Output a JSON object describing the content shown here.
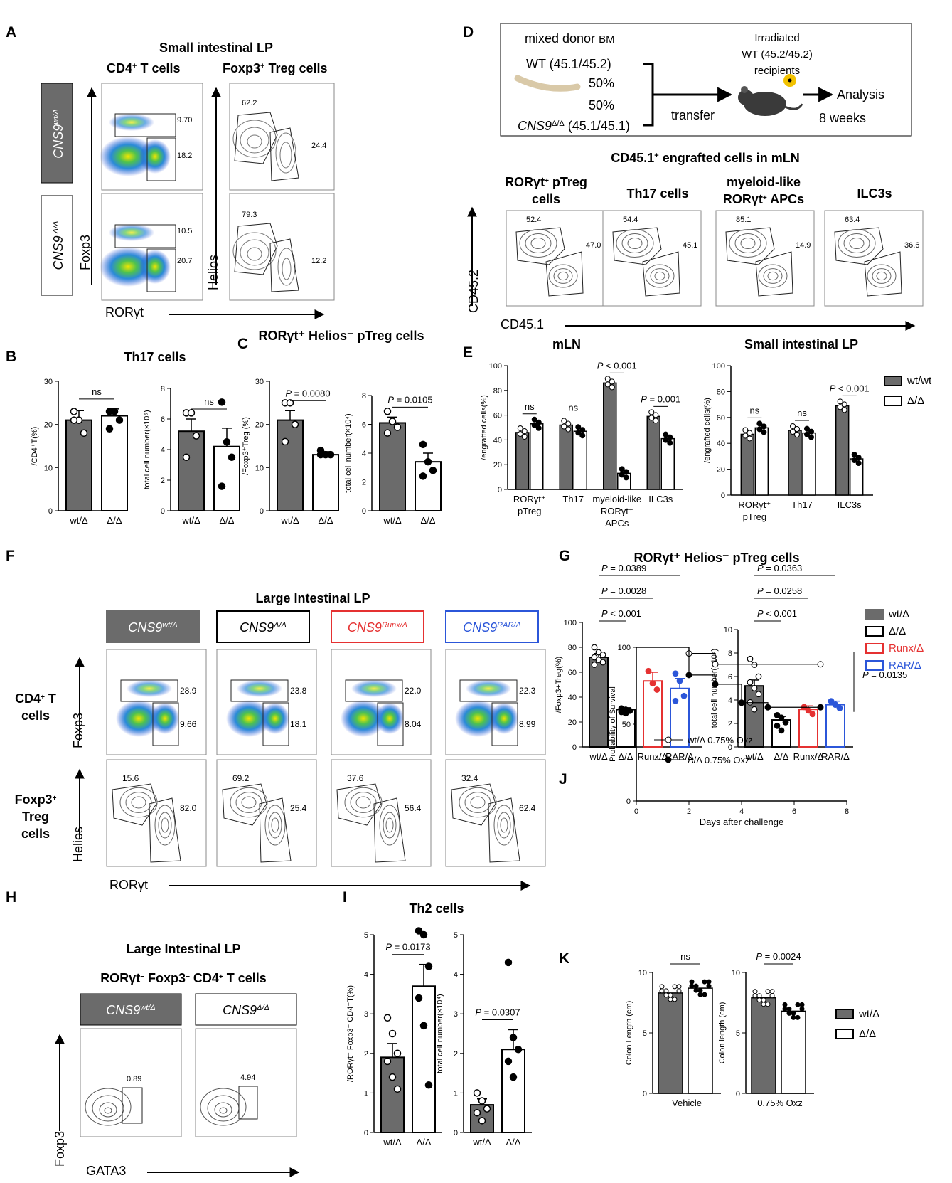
{
  "colors": {
    "wt": "#6b6b6b",
    "mut": "#ffffff",
    "runx": "#e53131",
    "rar": "#2b56d9",
    "boxGray": "#6b6b6b"
  },
  "panels": {
    "A": "A",
    "B": "B",
    "C": "C",
    "D": "D",
    "E": "E",
    "F": "F",
    "G": "G",
    "H": "H",
    "I": "I",
    "J": "J",
    "K": "K"
  },
  "A": {
    "title": "Small intestinal LP",
    "col1": "CD4",
    "col1sup": "+",
    "col1b": " T cells",
    "col2": "Foxp3",
    "col2sup": "+",
    "col2b": " Treg cells",
    "row1_label": "CNS9",
    "row1_sup": "wt/Δ",
    "row2_label": "CNS9",
    "row2_sup": " Δ/Δ",
    "y1": "Foxp3",
    "x1": "RORγt",
    "y2": "Helios",
    "freqs": {
      "r1g1": "9.70",
      "r1g2": "18.2",
      "r2g1": "10.5",
      "r2g2": "20.7",
      "r1h1": "62.2",
      "r1h2": "24.4",
      "r2h1": "79.3",
      "r2h2": "12.2"
    }
  },
  "D": {
    "mixed": "mixed donor",
    "bm": "BM",
    "wt": "WT (45.1/45.2)",
    "p1": "50%",
    "p2": "50%",
    "cns": "CNS9",
    "cnssup": "Δ/Δ",
    "cnsrest": " (45.1/45.1)",
    "transfer": "transfer",
    "irr1": "Irradiated",
    "irr2": "WT (45.2/45.2)",
    "irr3": "recipients",
    "analysis": "Analysis",
    "weeks": "8 weeks",
    "sub_title": "CD45.1",
    "sub_sup": "+",
    "sub_rest": " engrafted cells in mLN",
    "pops": [
      {
        "a": "RORγt",
        "asup": "+",
        "ab": " pTreg",
        "b": "cells",
        "f1": "52.4",
        "f2": "47.0"
      },
      {
        "a": "Th17 cells",
        "asup": "",
        "ab": "",
        "b": "",
        "f1": "54.4",
        "f2": "45.1"
      },
      {
        "a": "myeloid-like",
        "asup": "",
        "ab": "",
        "b": "RORγt",
        "bsup": "+",
        "bb": " APCs",
        "f1": "85.1",
        "f2": "14.9"
      },
      {
        "a": "ILC3s",
        "asup": "",
        "ab": "",
        "b": "",
        "f1": "63.4",
        "f2": "36.6"
      }
    ],
    "y": "CD45.2",
    "x": "CD45.1"
  },
  "F": {
    "title": "Large Intestinal LP",
    "genos": [
      {
        "base": "CNS9",
        "sup": "wt/Δ"
      },
      {
        "base": "CNS9",
        "sup": "Δ/Δ"
      },
      {
        "base": "CNS9",
        "sup": "Runx/Δ"
      },
      {
        "base": "CNS9",
        "sup": "RAR/Δ"
      }
    ],
    "row1a": "CD4",
    "row1sup": "+",
    "row1b": " T",
    "row1c": "cells",
    "row2a": "Foxp3",
    "row2sup": "+",
    "row2b": "Treg",
    "row2c": "cells",
    "y1": "Foxp3",
    "y2": "Helios",
    "x": "RORγt",
    "top": [
      [
        "28.9",
        "9.66"
      ],
      [
        "23.8",
        "18.1"
      ],
      [
        "22.0",
        "8.04"
      ],
      [
        "22.3",
        "8.99"
      ]
    ],
    "bot": [
      [
        "15.6",
        "82.0"
      ],
      [
        "69.2",
        "25.4"
      ],
      [
        "37.6",
        "56.4"
      ],
      [
        "32.4",
        "62.4"
      ]
    ]
  },
  "H": {
    "title": "Large Intestinal LP",
    "sub_a": "RORγt",
    "sub_asup": "−",
    "sub_b": " Foxp3",
    "sub_bsup": "−",
    "sub_c": " CD4",
    "sub_csup": "+",
    "sub_d": " T cells",
    "g1": "CNS9",
    "g1sup": "wt/Δ",
    "g2": "CNS9",
    "g2sup": "Δ/Δ",
    "f1": "0.89",
    "f2": "4.94",
    "y": "Foxp3",
    "x": "GATA3"
  },
  "legends": {
    "E": [
      {
        "label": "wt/wt",
        "fill": "#6b6b6b"
      },
      {
        "label": "Δ/Δ",
        "fill": "#ffffff"
      }
    ],
    "G": [
      {
        "label": "wt/Δ",
        "color": "#6b6b6b",
        "fill": "#6b6b6b"
      },
      {
        "label": "Δ/Δ",
        "color": "#000000",
        "fill": "#ffffff"
      },
      {
        "label": "Runx/Δ",
        "color": "#e53131",
        "fill": "#ffffff"
      },
      {
        "label": "RAR/Δ",
        "color": "#2b56d9",
        "fill": "#ffffff"
      }
    ],
    "K": [
      {
        "label": "wt/Δ",
        "fill": "#6b6b6b"
      },
      {
        "label": "Δ/Δ",
        "fill": "#ffffff"
      }
    ]
  },
  "chart_data": [
    {
      "id": "B1",
      "type": "bar",
      "title": "Th17 cells",
      "categories": [
        "wt/Δ",
        "Δ/Δ"
      ],
      "values": [
        21,
        22
      ],
      "sem": [
        2.2,
        1.6
      ],
      "ylabel": "/CD4⁺T(%)",
      "ylim": [
        0,
        30
      ],
      "yticks": [
        0,
        10,
        20,
        30
      ],
      "annot": "ns",
      "points": [
        [
          23,
          21,
          18,
          21
        ],
        [
          23,
          23,
          21,
          19
        ]
      ]
    },
    {
      "id": "B2",
      "type": "bar",
      "categories": [
        "wt/Δ",
        "Δ/Δ"
      ],
      "values": [
        5.2,
        4.2
      ],
      "sem": [
        0.8,
        1.2
      ],
      "ylabel": "total cell number(×10⁵)",
      "ylim": [
        0,
        8
      ],
      "yticks": [
        0,
        2,
        4,
        6,
        8
      ],
      "annot": "ns",
      "points": [
        [
          6.4,
          6.4,
          4.9,
          3.5
        ],
        [
          7.1,
          4.5,
          3.5,
          1.6
        ]
      ]
    },
    {
      "id": "C1",
      "type": "bar",
      "title": "RORγt⁺ Helios⁻ pTreg cells",
      "categories": [
        "wt/Δ",
        "Δ/Δ"
      ],
      "values": [
        21,
        13
      ],
      "sem": [
        2.2,
        0.7
      ],
      "ylabel": "/Foxp3⁺Treg (%)",
      "ylim": [
        0,
        30
      ],
      "yticks": [
        0,
        10,
        20,
        30
      ],
      "annot": "P = 0.0080",
      "points": [
        [
          25,
          25,
          20,
          16
        ],
        [
          14,
          13,
          13,
          13
        ]
      ]
    },
    {
      "id": "C2",
      "type": "bar",
      "categories": [
        "wt/Δ",
        "Δ/Δ"
      ],
      "values": [
        6.1,
        3.4
      ],
      "sem": [
        0.4,
        0.6
      ],
      "ylabel": "total cell number(×10⁴)",
      "ylim": [
        0,
        8
      ],
      "yticks": [
        0,
        2,
        4,
        6,
        8
      ],
      "annot": "P = 0.0105",
      "points": [
        [
          6.9,
          6.2,
          5.8,
          5.4
        ],
        [
          4.6,
          3.4,
          2.8,
          2.4
        ]
      ]
    },
    {
      "id": "E1",
      "type": "bar",
      "title": "mLN",
      "categories": [
        "RORγt⁺ pTreg",
        "Th17",
        "myeloid-like RORγt⁺ APCs",
        "ILC3s"
      ],
      "ylabel": "/engrafted cells(%)",
      "ylim": [
        0,
        100
      ],
      "yticks": [
        0,
        20,
        40,
        60,
        80,
        100
      ],
      "series": [
        {
          "name": "wt/wt",
          "values": [
            46,
            52,
            86,
            59
          ]
        },
        {
          "name": "Δ/Δ",
          "values": [
            53,
            47,
            13,
            41
          ]
        }
      ],
      "annots": [
        "ns",
        "ns",
        "P < 0.001",
        "P = 0.001"
      ]
    },
    {
      "id": "E2",
      "type": "bar",
      "title": "Small intestinal LP",
      "categories": [
        "RORγt⁺ pTreg",
        "Th17",
        "ILC3s"
      ],
      "ylabel": "/engrafted cells(%)",
      "ylim": [
        0,
        100
      ],
      "yticks": [
        0,
        20,
        40,
        60,
        80,
        100
      ],
      "series": [
        {
          "name": "wt/wt",
          "values": [
            47,
            50,
            69
          ]
        },
        {
          "name": "Δ/Δ",
          "values": [
            52,
            48,
            28
          ]
        }
      ],
      "annots": [
        "ns",
        "ns",
        "P < 0.001"
      ]
    },
    {
      "id": "G1",
      "type": "bar",
      "title": "RORγt⁺ Helios⁻ pTreg cells",
      "categories": [
        "wt/Δ",
        "Δ/Δ",
        "Runx/Δ",
        "RAR/Δ"
      ],
      "values": [
        72,
        30,
        53,
        47
      ],
      "sem": [
        3,
        1.5,
        7,
        8
      ],
      "ylabel": "/Foxp3+Treg(%)",
      "ylim": [
        0,
        100
      ],
      "yticks": [
        0,
        20,
        40,
        60,
        80,
        100
      ],
      "annots": [
        "P < 0.001",
        "P = 0.0028",
        "P = 0.0389"
      ]
    },
    {
      "id": "G2",
      "type": "bar",
      "categories": [
        "wt/Δ",
        "Δ/Δ",
        "Runx/Δ",
        "RAR/Δ"
      ],
      "values": [
        5.2,
        2.3,
        3.2,
        3.6
      ],
      "sem": [
        0.5,
        0.3,
        0.3,
        0.3
      ],
      "ylabel": "total cell number(×10⁴)",
      "ylim": [
        0,
        10
      ],
      "yticks": [
        0,
        2,
        4,
        6,
        8,
        10
      ],
      "annots": [
        "P < 0.001",
        "P = 0.0258",
        "P = 0.0363"
      ]
    },
    {
      "id": "I1",
      "type": "bar",
      "title": "Th2 cells",
      "categories": [
        "wt/Δ",
        "Δ/Δ"
      ],
      "values": [
        1.9,
        3.7
      ],
      "sem": [
        0.35,
        0.55
      ],
      "ylabel": "/RORγt⁻ Foxp3⁻ CD4⁺T(%)",
      "ylim": [
        0,
        5
      ],
      "yticks": [
        0,
        1,
        2,
        3,
        4,
        5
      ],
      "annot": "P = 0.0173",
      "points": [
        [
          2.9,
          2.5,
          2.0,
          1.8,
          1.4,
          1.1
        ],
        [
          5.1,
          5.0,
          4.2,
          3.4,
          2.7,
          1.2
        ]
      ]
    },
    {
      "id": "I2",
      "type": "bar",
      "categories": [
        "wt/Δ",
        "Δ/Δ"
      ],
      "values": [
        0.7,
        2.1
      ],
      "sem": [
        0.15,
        0.5
      ],
      "ylabel": "total cell number(×10⁴)",
      "ylim": [
        0,
        5
      ],
      "yticks": [
        0,
        1,
        2,
        3,
        4,
        5
      ],
      "annot": "P = 0.0307",
      "points": [
        [
          1.0,
          0.8,
          0.6,
          0.5,
          0.3
        ],
        [
          4.3,
          2.4,
          2.1,
          1.8,
          1.4
        ]
      ]
    },
    {
      "id": "J",
      "type": "line",
      "xlabel": "Days after challenge",
      "ylabel": "Probability of Survival",
      "xlim": [
        0,
        8
      ],
      "ylim": [
        0,
        100
      ],
      "xticks": [
        0,
        2,
        4,
        6,
        8
      ],
      "yticks": [
        0,
        50,
        100
      ],
      "annot": "P = 0.0135",
      "series": [
        {
          "name": "wt/Δ 0.75% Oxz",
          "x": [
            0,
            2,
            3,
            7
          ],
          "y": [
            100,
            96,
            89,
            89
          ]
        },
        {
          "name": "Δ/Δ 0.75% Oxz",
          "x": [
            0,
            2,
            3,
            4,
            5,
            7
          ],
          "y": [
            100,
            82,
            76,
            64,
            61,
            61
          ]
        }
      ]
    },
    {
      "id": "K1",
      "type": "bar",
      "categories": [
        "Vehicle"
      ],
      "xlabel": "Vehicle",
      "ylabel": "Colon Length (cm)",
      "ylim": [
        0,
        10
      ],
      "yticks": [
        0,
        5,
        10
      ],
      "annot": "ns",
      "series": [
        {
          "name": "wt/Δ",
          "values": [
            8.3
          ]
        },
        {
          "name": "Δ/Δ",
          "values": [
            8.7
          ]
        }
      ]
    },
    {
      "id": "K2",
      "type": "bar",
      "categories": [
        "0.75% Oxz"
      ],
      "xlabel": "0.75% Oxz",
      "ylabel": "Colon length (cm)",
      "ylim": [
        0,
        10
      ],
      "yticks": [
        0,
        5,
        10
      ],
      "annot": "P = 0.0024",
      "series": [
        {
          "name": "wt/Δ",
          "values": [
            7.9
          ]
        },
        {
          "name": "Δ/Δ",
          "values": [
            6.8
          ]
        }
      ]
    }
  ]
}
